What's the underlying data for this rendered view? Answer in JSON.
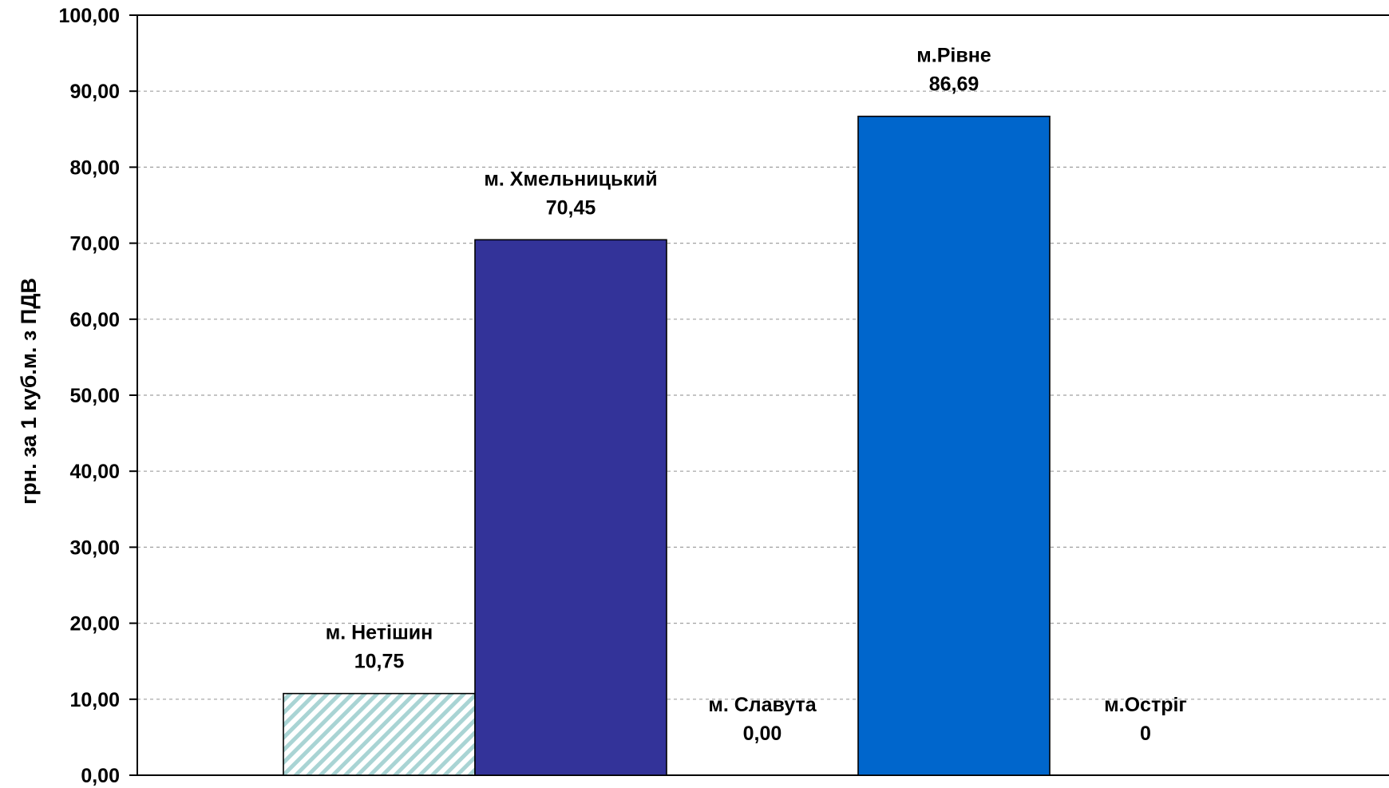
{
  "chart_data": {
    "type": "bar",
    "title": "",
    "xlabel": "",
    "ylabel": "грн. за 1 куб.м. з ПДВ",
    "ylim": [
      0,
      100
    ],
    "y_tick_step": 10,
    "y_tick_labels": [
      "0,00",
      "10,00",
      "20,00",
      "30,00",
      "40,00",
      "50,00",
      "60,00",
      "70,00",
      "80,00",
      "90,00",
      "100,00"
    ],
    "grid": true,
    "legend": "none",
    "categories": [
      "м. Нетішин",
      "м. Хмельницький",
      "м. Славута",
      "м.Рівне",
      "м.Остріг"
    ],
    "values": [
      10.75,
      70.45,
      0.0,
      86.69,
      0
    ],
    "value_labels": [
      "10,75",
      "70,45",
      "0,00",
      "86,69",
      "0"
    ],
    "bar_colors": [
      "#bfe0e0",
      "#333399",
      "#ffffff",
      "#0066cc",
      "#ffffff"
    ],
    "bar_patterns": [
      "diagonal-hatch",
      "solid",
      "none",
      "solid",
      "none"
    ]
  }
}
